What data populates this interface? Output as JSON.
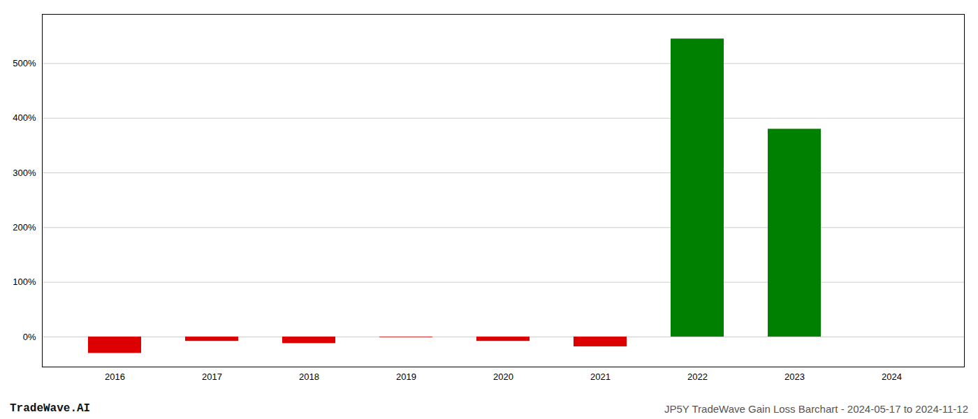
{
  "chart_data": {
    "type": "bar",
    "title": "JP5Y TradeWave Gain Loss Barchart - 2024-05-17 to 2024-11-12",
    "annotations": [
      "TradeWave.AI"
    ],
    "categories": [
      "2016",
      "2017",
      "2018",
      "2019",
      "2020",
      "2021",
      "2022",
      "2023",
      "2024"
    ],
    "values": [
      -30,
      -8,
      -12,
      -1,
      -8,
      -18,
      545,
      380,
      0
    ],
    "colors": [
      "#dd0000",
      "#dd0000",
      "#dd0000",
      "#dd0000",
      "#dd0000",
      "#dd0000",
      "#008000",
      "#008000",
      "#ffffff"
    ],
    "ylim": [
      -55,
      590
    ],
    "yticks": [
      {
        "value": 0,
        "label": "0%"
      },
      {
        "value": 100,
        "label": "100%"
      },
      {
        "value": 200,
        "label": "200%"
      },
      {
        "value": 300,
        "label": "300%"
      },
      {
        "value": 400,
        "label": "400%"
      },
      {
        "value": 500,
        "label": "500%"
      }
    ],
    "grid": true
  }
}
